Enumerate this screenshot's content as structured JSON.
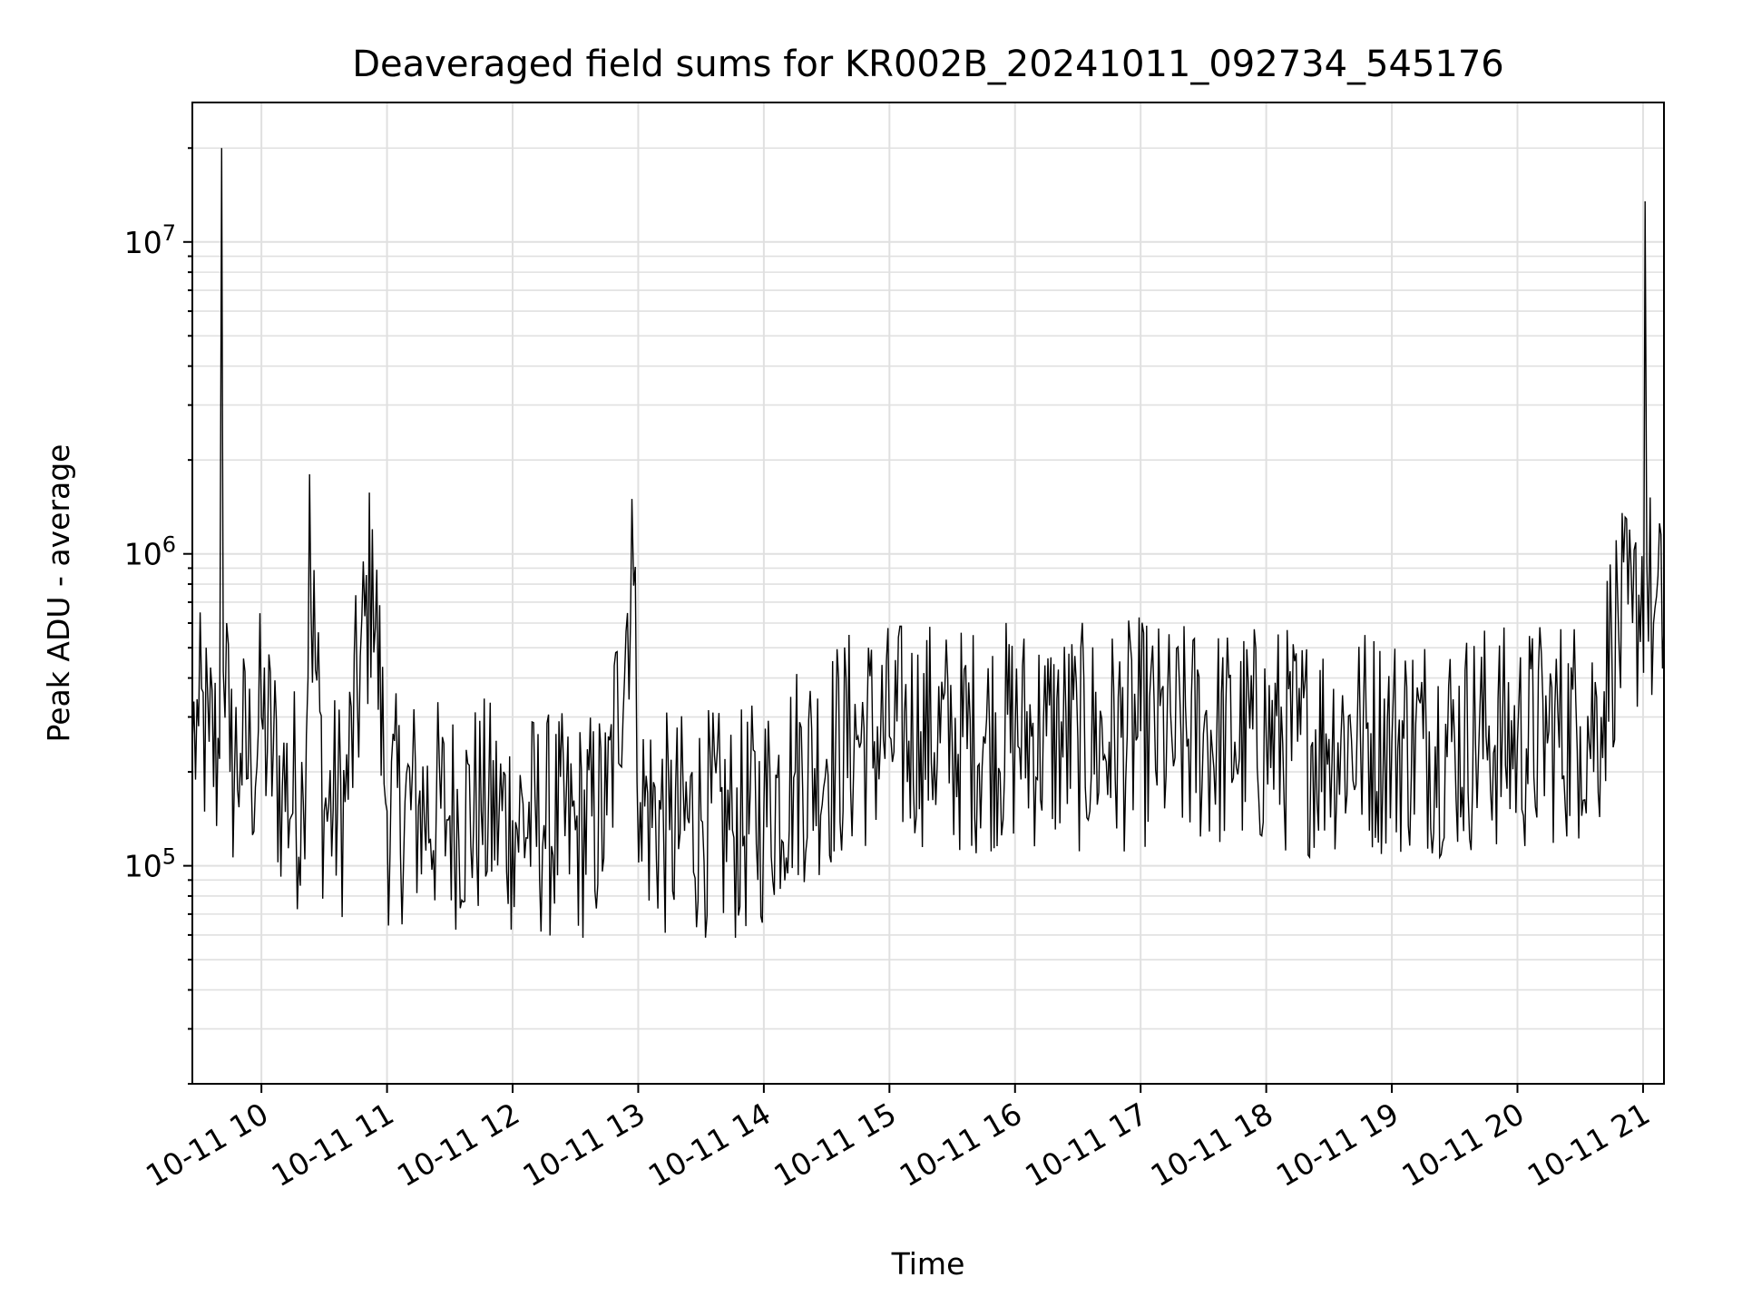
{
  "chart_data": {
    "type": "line",
    "title": "Deaveraged field sums for KR002B_20241011_092734_545176",
    "xlabel": "Time",
    "ylabel": "Peak ADU - average",
    "yscale": "log",
    "ylim": [
      20000,
      28000000
    ],
    "xlim": [
      "2024-10-11 09:27",
      "2024-10-11 21:10"
    ],
    "grid": true,
    "x_tick_labels": [
      "10-11 10",
      "10-11 11",
      "10-11 12",
      "10-11 13",
      "10-11 14",
      "10-11 15",
      "10-11 16",
      "10-11 17",
      "10-11 18",
      "10-11 19",
      "10-11 20",
      "10-11 21"
    ],
    "y_tick_labels": [
      {
        "base": "10",
        "exp": "5",
        "value": 100000
      },
      {
        "base": "10",
        "exp": "6",
        "value": 1000000
      },
      {
        "base": "10",
        "exp": "7",
        "value": 10000000
      }
    ],
    "line_color": "#000000",
    "series": [
      {
        "x": [
          "2024-10-11 09:27",
          "2024-10-11 09:30",
          "2024-10-11 09:35",
          "2024-10-11 09:40",
          "2024-10-11 09:41",
          "2024-10-11 09:45",
          "2024-10-11 09:50",
          "2024-10-11 09:55",
          "2024-10-11 10:00",
          "2024-10-11 10:10",
          "2024-10-11 10:20",
          "2024-10-11 10:23",
          "2024-10-11 10:30",
          "2024-10-11 10:40",
          "2024-10-11 10:53",
          "2024-10-11 11:00",
          "2024-10-11 11:15",
          "2024-10-11 11:30",
          "2024-10-11 11:45",
          "2024-10-11 12:00",
          "2024-10-11 12:15",
          "2024-10-11 12:30",
          "2024-10-11 12:45",
          "2024-10-11 12:57",
          "2024-10-11 13:01",
          "2024-10-11 13:15",
          "2024-10-11 13:30",
          "2024-10-11 13:45",
          "2024-10-11 14:00",
          "2024-10-11 14:15",
          "2024-10-11 14:30",
          "2024-10-11 14:45",
          "2024-10-11 15:00",
          "2024-10-11 15:15",
          "2024-10-11 15:30",
          "2024-10-11 15:45",
          "2024-10-11 16:00",
          "2024-10-11 16:15",
          "2024-10-11 16:30",
          "2024-10-11 16:45",
          "2024-10-11 17:00",
          "2024-10-11 17:15",
          "2024-10-11 17:30",
          "2024-10-11 17:45",
          "2024-10-11 18:00",
          "2024-10-11 18:15",
          "2024-10-11 18:30",
          "2024-10-11 18:45",
          "2024-10-11 19:00",
          "2024-10-11 19:15",
          "2024-10-11 19:30",
          "2024-10-11 19:45",
          "2024-10-11 20:00",
          "2024-10-11 20:15",
          "2024-10-11 20:30",
          "2024-10-11 20:40",
          "2024-10-11 20:45",
          "2024-10-11 20:55",
          "2024-10-11 21:01",
          "2024-10-11 21:05",
          "2024-10-11 21:10"
        ],
        "y": [
          250000,
          280000,
          250000,
          220000,
          20000000,
          200000,
          230000,
          210000,
          300000,
          180000,
          160000,
          1800000,
          150000,
          160000,
          1200000,
          150000,
          155000,
          145000,
          150000,
          140000,
          135000,
          130000,
          145000,
          1500000,
          160000,
          130000,
          140000,
          130000,
          150000,
          200000,
          220000,
          260000,
          260000,
          270000,
          250000,
          260000,
          265000,
          260000,
          255000,
          250000,
          270000,
          250000,
          265000,
          250000,
          260000,
          250000,
          255000,
          260000,
          250000,
          255000,
          250000,
          260000,
          250000,
          270000,
          280000,
          300000,
          550000,
          600000,
          13500000,
          600000,
          580000
        ]
      }
    ]
  }
}
